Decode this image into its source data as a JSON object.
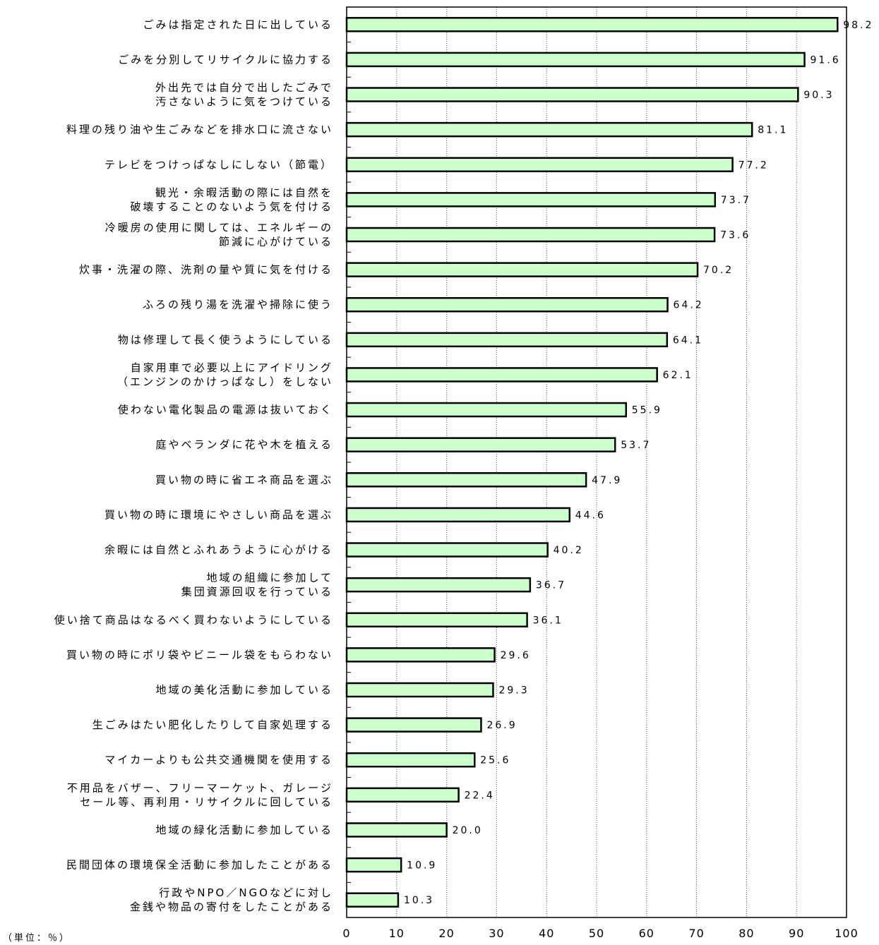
{
  "chart_data": {
    "type": "bar",
    "orientation": "horizontal",
    "unit_note": "（単位：％）",
    "bar_color": "#ccffcc",
    "xlim": [
      0,
      100
    ],
    "xticks": [
      "0",
      "10",
      "20",
      "30",
      "40",
      "50",
      "60",
      "70",
      "80",
      "90",
      "100"
    ],
    "grid": true,
    "categories": [
      [
        "ごみは指定された日に出している"
      ],
      [
        "ごみを分別してリサイクルに協力する"
      ],
      [
        "外出先では自分で出したごみで",
        "汚さないように気をつけている"
      ],
      [
        "料理の残り油や生ごみなどを排水口に流さない"
      ],
      [
        "テレビをつけっぱなしにしない（節電）"
      ],
      [
        "観光・余暇活動の際には自然を",
        "破壊することのないよう気を付ける"
      ],
      [
        "冷暖房の使用に関しては、エネルギーの",
        "節減に心がけている"
      ],
      [
        "炊事・洗濯の際、洗剤の量や質に気を付ける"
      ],
      [
        "ふろの残り湯を洗濯や掃除に使う"
      ],
      [
        "物は修理して長く使うようにしている"
      ],
      [
        "自家用車で必要以上にアイドリング",
        "（エンジンのかけっぱなし）をしない"
      ],
      [
        "使わない電化製品の電源は抜いておく"
      ],
      [
        "庭やベランダに花や木を植える"
      ],
      [
        "買い物の時に省エネ商品を選ぶ"
      ],
      [
        "買い物の時に環境にやさしい商品を選ぶ"
      ],
      [
        "余暇には自然とふれあうように心がける"
      ],
      [
        "地域の組織に参加して",
        "集団資源回収を行っている"
      ],
      [
        "使い捨て商品はなるべく買わないようにしている"
      ],
      [
        "買い物の時にポリ袋やビニール袋をもらわない"
      ],
      [
        "地域の美化活動に参加している"
      ],
      [
        "生ごみはたい肥化したりして自家処理する"
      ],
      [
        "マイカーよりも公共交通機関を使用する"
      ],
      [
        "不用品をバザー、フリーマーケット、ガレージ",
        "セール等、再利用・リサイクルに回している"
      ],
      [
        "地域の緑化活動に参加している"
      ],
      [
        "民間団体の環境保全活動に参加したことがある"
      ],
      [
        "行政やNPO／NGOなどに対し",
        "金銭や物品の寄付をしたことがある"
      ]
    ],
    "values": [
      98.2,
      91.6,
      90.3,
      81.1,
      77.2,
      73.7,
      73.6,
      70.2,
      64.2,
      64.1,
      62.1,
      55.9,
      53.7,
      47.9,
      44.6,
      40.2,
      36.7,
      36.1,
      29.6,
      29.3,
      26.9,
      25.6,
      22.4,
      20.0,
      10.9,
      10.3
    ],
    "value_labels": [
      "98.2",
      "91.6",
      "90.3",
      "81.1",
      "77.2",
      "73.7",
      "73.6",
      "70.2",
      "64.2",
      "64.1",
      "62.1",
      "55.9",
      "53.7",
      "47.9",
      "44.6",
      "40.2",
      "36.7",
      "36.1",
      "29.6",
      "29.3",
      "26.9",
      "25.6",
      "22.4",
      "20.0",
      "10.9",
      "10.3"
    ]
  }
}
